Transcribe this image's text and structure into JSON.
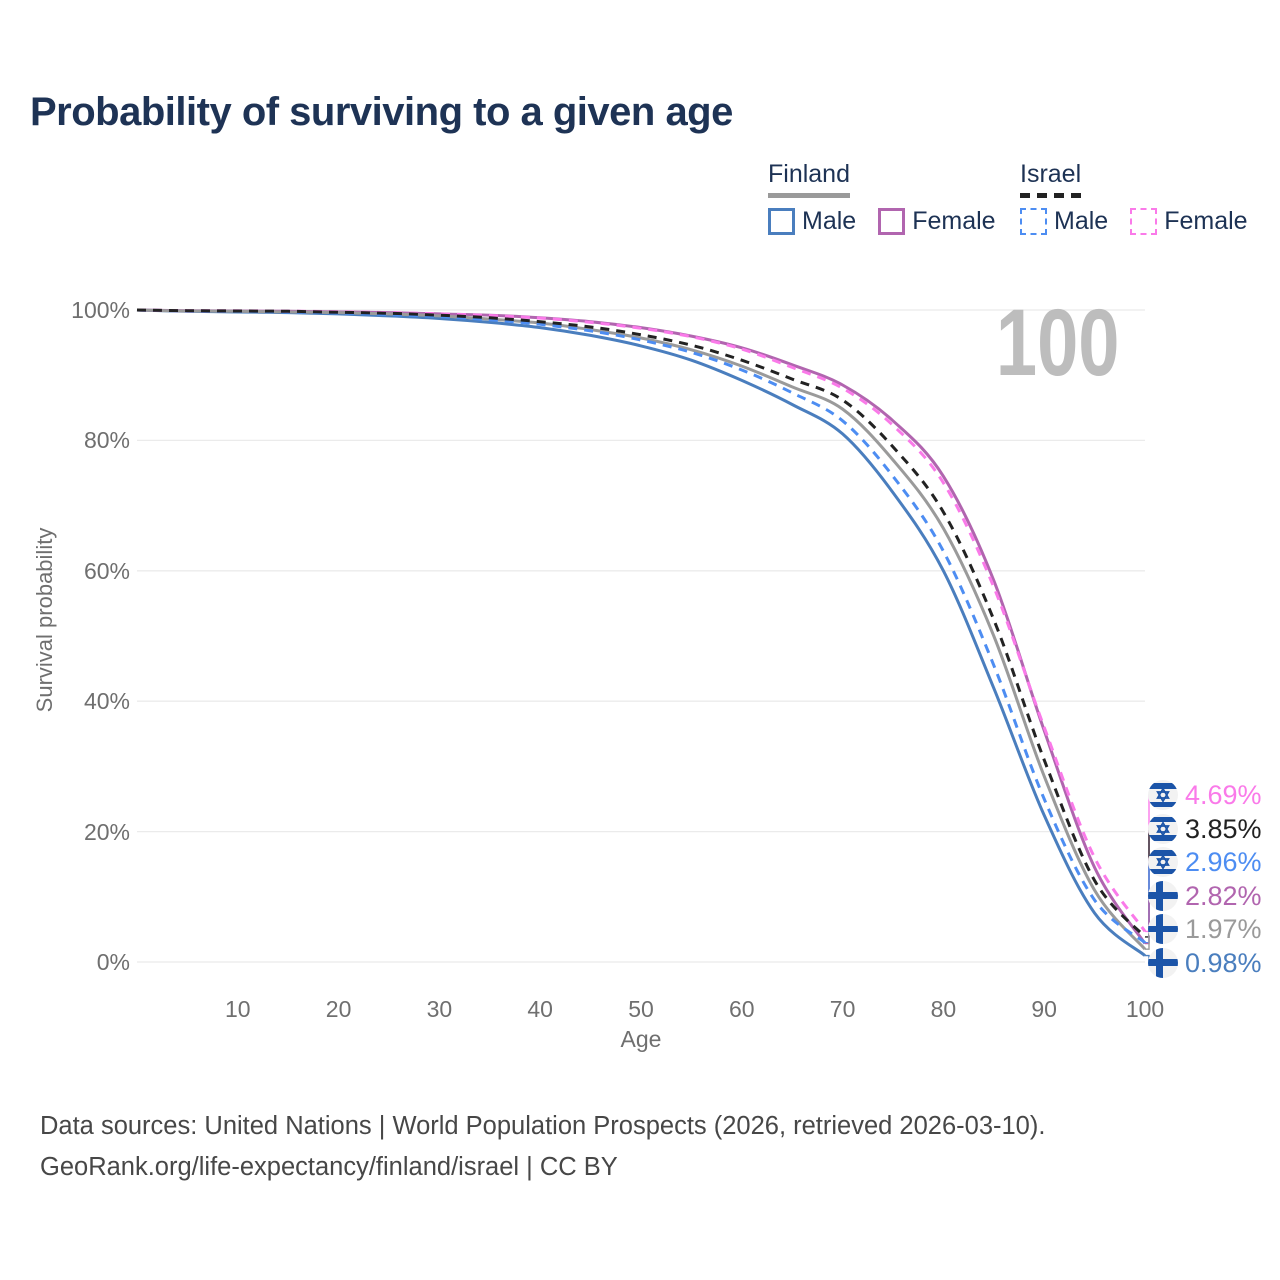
{
  "title": "Probability of surviving to a given age",
  "watermark": "100",
  "theme": {
    "background": "#ffffff",
    "title_color": "#1e3355",
    "legend_text_color": "#1d3254",
    "axis_text_color": "#6f6f6f",
    "footer_color": "#474747",
    "watermark_color": "#bdbdbd",
    "grid_color": "#ebebeb",
    "flag_blue": "#1b54a8"
  },
  "legend": {
    "groups": [
      {
        "country": "Finland",
        "underline_style": "solid",
        "underline_color": "#9a9a9a",
        "items": [
          {
            "label": "Male",
            "color": "#4a7ebe",
            "dashed": false
          },
          {
            "label": "Female",
            "color": "#b165af",
            "dashed": false
          }
        ]
      },
      {
        "country": "Israel",
        "underline_style": "dashed",
        "underline_color": "#222222",
        "items": [
          {
            "label": "Male",
            "color": "#4d8df2",
            "dashed": true
          },
          {
            "label": "Female",
            "color": "#fa7ae9",
            "dashed": true
          }
        ]
      }
    ]
  },
  "chart_data": {
    "type": "line",
    "title": "Probability of surviving to a given age",
    "xlabel": "Age",
    "ylabel": "Survival probability",
    "xlim": [
      0,
      100
    ],
    "ylim": [
      0,
      100
    ],
    "grid": true,
    "legend_position": "top-right",
    "x_ticks": [
      10,
      20,
      30,
      40,
      50,
      60,
      70,
      80,
      90,
      100
    ],
    "y_ticks": [
      {
        "value": 100,
        "label": "100%"
      },
      {
        "value": 80,
        "label": "80%"
      },
      {
        "value": 60,
        "label": "60%"
      },
      {
        "value": 40,
        "label": "40%"
      },
      {
        "value": 20,
        "label": "20%"
      },
      {
        "value": 0,
        "label": "0%"
      }
    ],
    "x": [
      0,
      5,
      10,
      15,
      20,
      25,
      30,
      35,
      40,
      45,
      50,
      55,
      60,
      65,
      70,
      75,
      80,
      85,
      90,
      95,
      100
    ],
    "series": [
      {
        "name": "Finland Male",
        "country": "Finland",
        "sex": "Male",
        "style": "solid",
        "color": "#4a7ebe",
        "end_label": "0.98%",
        "values": [
          100,
          99.8,
          99.7,
          99.6,
          99.4,
          99.1,
          98.7,
          98.1,
          97.3,
          96.1,
          94.5,
          92.3,
          89.2,
          85.5,
          81.0,
          72.0,
          60.0,
          42.0,
          22.5,
          7.5,
          0.98
        ]
      },
      {
        "name": "Finland Female",
        "country": "Finland",
        "sex": "Female",
        "style": "solid",
        "color": "#b165af",
        "end_label": "2.82%",
        "values": [
          100,
          99.9,
          99.85,
          99.8,
          99.7,
          99.6,
          99.4,
          99.2,
          98.8,
          98.2,
          97.3,
          96.0,
          94.2,
          91.6,
          88.5,
          83.0,
          74.5,
          58.5,
          35.5,
          14.5,
          2.82
        ]
      },
      {
        "name": "Finland Total",
        "country": "Finland",
        "sex": "Total",
        "style": "solid",
        "color": "#9a9a9a",
        "end_label": "1.97%",
        "values": [
          100,
          99.85,
          99.8,
          99.7,
          99.6,
          99.4,
          99.1,
          98.6,
          98.0,
          97.0,
          95.7,
          93.9,
          91.4,
          88.2,
          84.8,
          77.0,
          66.5,
          50.0,
          28.5,
          11.0,
          1.97
        ]
      },
      {
        "name": "Israel Male",
        "country": "Israel",
        "sex": "Male",
        "style": "dashed",
        "color": "#4d8df2",
        "end_label": "2.96%",
        "values": [
          100,
          99.85,
          99.8,
          99.7,
          99.55,
          99.3,
          99.0,
          98.5,
          97.8,
          96.8,
          95.4,
          93.5,
          90.8,
          87.3,
          83.0,
          74.5,
          63.0,
          45.5,
          25.0,
          9.5,
          2.96
        ]
      },
      {
        "name": "Israel Female",
        "country": "Israel",
        "sex": "Female",
        "style": "dashed",
        "color": "#fa7ae9",
        "end_label": "4.69%",
        "values": [
          100,
          99.9,
          99.87,
          99.82,
          99.73,
          99.6,
          99.42,
          99.15,
          98.75,
          98.1,
          97.2,
          95.9,
          94.0,
          91.2,
          88.0,
          82.3,
          73.5,
          57.5,
          36.0,
          16.0,
          4.69
        ]
      },
      {
        "name": "Israel Total",
        "country": "Israel",
        "sex": "Total",
        "style": "dashed",
        "color": "#222222",
        "end_label": "3.85%",
        "values": [
          100,
          99.9,
          99.85,
          99.8,
          99.65,
          99.5,
          99.2,
          98.8,
          98.2,
          97.4,
          96.2,
          94.6,
          92.3,
          89.4,
          86.2,
          79.0,
          69.0,
          52.5,
          31.0,
          12.5,
          3.85
        ]
      }
    ]
  },
  "footer": {
    "line1": "Data sources: United Nations | World Population Prospects (2026, retrieved 2026-03-10).",
    "line2": "GeoRank.org/life-expectancy/finland/israel | CC BY"
  }
}
